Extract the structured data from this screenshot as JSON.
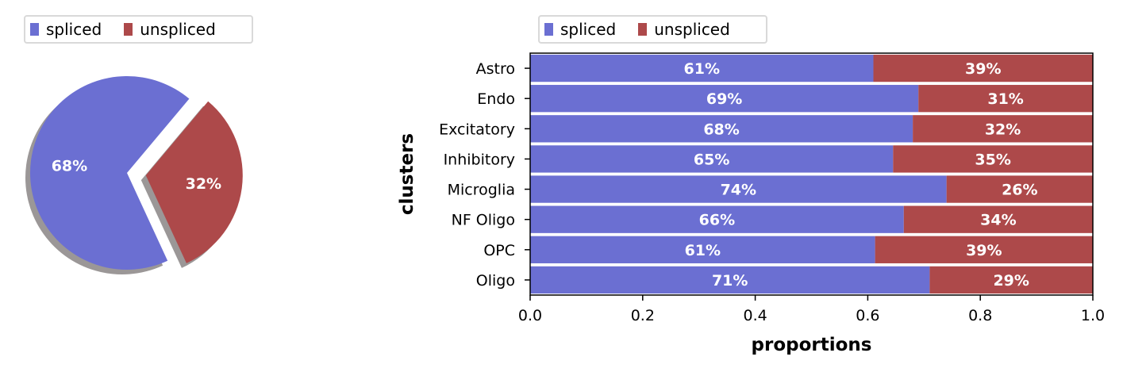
{
  "colors": {
    "spliced": "#6b6fd2",
    "unspliced": "#ad494a",
    "shadow": "#8a8585"
  },
  "legend": {
    "spliced": "spliced",
    "unspliced": "unspliced"
  },
  "chart_data": [
    {
      "type": "pie",
      "labels": [
        "spliced",
        "unspliced"
      ],
      "values": [
        68,
        32
      ],
      "value_labels": [
        "68%",
        "32%"
      ],
      "exploded": "unspliced",
      "shadow": true,
      "legend_position": "top-left"
    },
    {
      "type": "bar",
      "orientation": "horizontal",
      "stacked": true,
      "categories": [
        "Astro",
        "Endo",
        "Excitatory",
        "Inhibitory",
        "Microglia",
        "NF Oligo",
        "OPC",
        "Oligo"
      ],
      "series": [
        {
          "name": "spliced",
          "values": [
            0.61,
            0.69,
            0.68,
            0.645,
            0.74,
            0.664,
            0.613,
            0.71
          ],
          "labels": [
            "61%",
            "69%",
            "68%",
            "65%",
            "74%",
            "66%",
            "61%",
            "71%"
          ]
        },
        {
          "name": "unspliced",
          "values": [
            0.39,
            0.31,
            0.32,
            0.355,
            0.26,
            0.336,
            0.387,
            0.29
          ],
          "labels": [
            "39%",
            "31%",
            "32%",
            "35%",
            "26%",
            "34%",
            "39%",
            "29%"
          ]
        }
      ],
      "xlabel": "proportions",
      "ylabel": "clusters",
      "xlim": [
        0,
        1
      ],
      "xticks": [
        "0.0",
        "0.2",
        "0.4",
        "0.6",
        "0.8",
        "1.0"
      ],
      "grid": false,
      "legend_position": "top-left"
    }
  ]
}
